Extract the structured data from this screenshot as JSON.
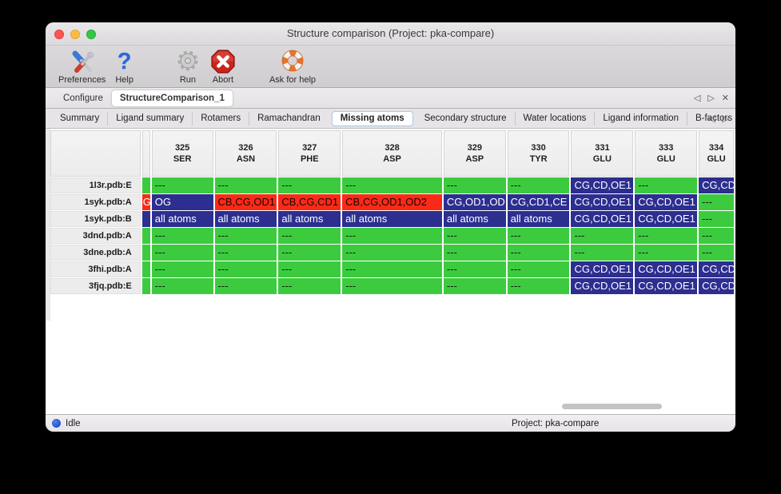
{
  "window": {
    "title": "Structure comparison (Project: pka-compare)"
  },
  "toolbar": {
    "items": [
      {
        "label": "Preferences",
        "icon": "tools-icon"
      },
      {
        "label": "Help",
        "icon": "question-icon"
      },
      {
        "label": "Run",
        "icon": "gear-icon"
      },
      {
        "label": "Abort",
        "icon": "abort-icon"
      },
      {
        "label": "Ask for help",
        "icon": "life-ring-icon"
      }
    ]
  },
  "document_tabs": {
    "tabs": [
      {
        "label": "Configure",
        "active": false
      },
      {
        "label": "StructureComparison_1",
        "active": true
      }
    ],
    "nav": {
      "prev": "◁",
      "next": "▷",
      "close": "✕"
    }
  },
  "view_tabs": {
    "selected": "Missing atoms",
    "tabs": [
      "Summary",
      "Ligand summary",
      "Rotamers",
      "Ramachandran",
      "Missing atoms",
      "Secondary structure",
      "Water locations",
      "Ligand information",
      "B-factors"
    ],
    "nav": {
      "prev": "◁",
      "next": "▷"
    }
  },
  "colors": {
    "green": "#3CCB3F",
    "red": "#FB2A18",
    "blue": "#2C2E90"
  },
  "table": {
    "columns": [
      {
        "num": "325",
        "res": "SER"
      },
      {
        "num": "326",
        "res": "ASN"
      },
      {
        "num": "327",
        "res": "PHE"
      },
      {
        "num": "328",
        "res": "ASP"
      },
      {
        "num": "329",
        "res": "ASP"
      },
      {
        "num": "330",
        "res": "TYR"
      },
      {
        "num": "331",
        "res": "GLU"
      },
      {
        "num": "333",
        "res": "GLU"
      },
      {
        "num": "334",
        "res": "GLU"
      }
    ],
    "rows": [
      {
        "label": "1l3r.pdb:E",
        "strip": {
          "t": "",
          "c": "green"
        },
        "cells": [
          {
            "t": "---",
            "c": "green"
          },
          {
            "t": "---",
            "c": "green"
          },
          {
            "t": "---",
            "c": "green"
          },
          {
            "t": "---",
            "c": "green"
          },
          {
            "t": "---",
            "c": "green"
          },
          {
            "t": "---",
            "c": "green"
          },
          {
            "t": "CG,CD,OE1",
            "c": "blue"
          },
          {
            "t": "---",
            "c": "green"
          },
          {
            "t": "CG,CD",
            "c": "blue"
          }
        ]
      },
      {
        "label": "1syk.pdb:A",
        "strip": {
          "t": "G",
          "c": "red"
        },
        "cells": [
          {
            "t": "OG",
            "c": "blue"
          },
          {
            "t": "CB,CG,OD1",
            "c": "red"
          },
          {
            "t": "CB,CG,CD1",
            "c": "red"
          },
          {
            "t": "CB,CG,OD1,OD2",
            "c": "red"
          },
          {
            "t": "CG,OD1,OD",
            "c": "blue"
          },
          {
            "t": "CG,CD1,CE",
            "c": "blue"
          },
          {
            "t": "CG,CD,OE1",
            "c": "blue"
          },
          {
            "t": "CG,CD,OE1",
            "c": "blue"
          },
          {
            "t": "---",
            "c": "green"
          }
        ]
      },
      {
        "label": "1syk.pdb:B",
        "strip": {
          "t": "",
          "c": "blue"
        },
        "cells": [
          {
            "t": "all atoms",
            "c": "blue"
          },
          {
            "t": "all atoms",
            "c": "blue"
          },
          {
            "t": "all atoms",
            "c": "blue"
          },
          {
            "t": "all atoms",
            "c": "blue"
          },
          {
            "t": "all atoms",
            "c": "blue"
          },
          {
            "t": "all atoms",
            "c": "blue"
          },
          {
            "t": "CG,CD,OE1",
            "c": "blue"
          },
          {
            "t": "CG,CD,OE1",
            "c": "blue"
          },
          {
            "t": "---",
            "c": "green"
          }
        ]
      },
      {
        "label": "3dnd.pdb:A",
        "strip": {
          "t": "",
          "c": "green"
        },
        "cells": [
          {
            "t": "---",
            "c": "green"
          },
          {
            "t": "---",
            "c": "green"
          },
          {
            "t": "---",
            "c": "green"
          },
          {
            "t": "---",
            "c": "green"
          },
          {
            "t": "---",
            "c": "green"
          },
          {
            "t": "---",
            "c": "green"
          },
          {
            "t": "---",
            "c": "green"
          },
          {
            "t": "---",
            "c": "green"
          },
          {
            "t": "---",
            "c": "green"
          }
        ]
      },
      {
        "label": "3dne.pdb:A",
        "strip": {
          "t": "",
          "c": "green"
        },
        "cells": [
          {
            "t": "---",
            "c": "green"
          },
          {
            "t": "---",
            "c": "green"
          },
          {
            "t": "---",
            "c": "green"
          },
          {
            "t": "---",
            "c": "green"
          },
          {
            "t": "---",
            "c": "green"
          },
          {
            "t": "---",
            "c": "green"
          },
          {
            "t": "---",
            "c": "green"
          },
          {
            "t": "---",
            "c": "green"
          },
          {
            "t": "---",
            "c": "green"
          }
        ]
      },
      {
        "label": "3fhi.pdb:A",
        "strip": {
          "t": "",
          "c": "green"
        },
        "cells": [
          {
            "t": "---",
            "c": "green"
          },
          {
            "t": "---",
            "c": "green"
          },
          {
            "t": "---",
            "c": "green"
          },
          {
            "t": "---",
            "c": "green"
          },
          {
            "t": "---",
            "c": "green"
          },
          {
            "t": "---",
            "c": "green"
          },
          {
            "t": "CG,CD,OE1",
            "c": "blue"
          },
          {
            "t": "CG,CD,OE1",
            "c": "blue"
          },
          {
            "t": "CG,CD",
            "c": "blue"
          }
        ]
      },
      {
        "label": "3fjq.pdb:E",
        "strip": {
          "t": "",
          "c": "green"
        },
        "cells": [
          {
            "t": "---",
            "c": "green"
          },
          {
            "t": "---",
            "c": "green"
          },
          {
            "t": "---",
            "c": "green"
          },
          {
            "t": "---",
            "c": "green"
          },
          {
            "t": "---",
            "c": "green"
          },
          {
            "t": "---",
            "c": "green"
          },
          {
            "t": "CG,CD,OE1",
            "c": "blue"
          },
          {
            "t": "CG,CD,OE1",
            "c": "blue"
          },
          {
            "t": "CG,CD",
            "c": "blue"
          }
        ]
      }
    ]
  },
  "status_bar": {
    "state": "Idle",
    "project": "Project: pka-compare"
  }
}
